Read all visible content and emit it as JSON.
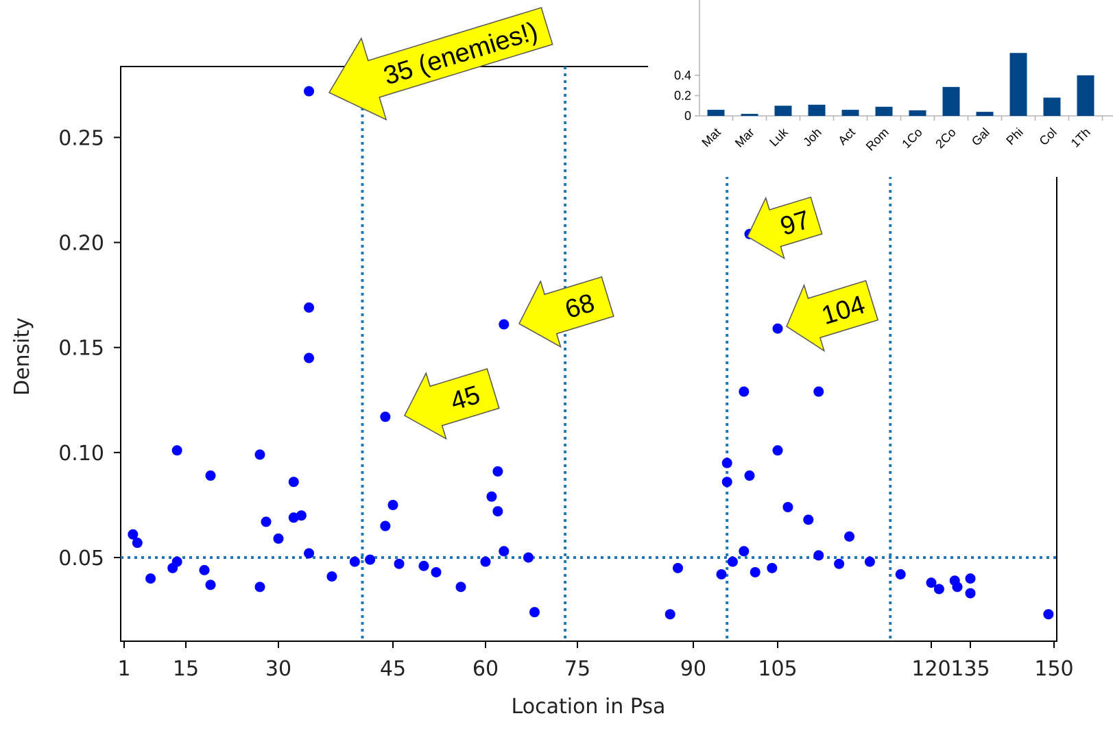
{
  "chart_data": [
    {
      "type": "scatter",
      "xlabel": "Location in Psa",
      "ylabel": "Density",
      "xlim": [
        0,
        150
      ],
      "ylim": [
        0.01,
        0.285
      ],
      "x_ticks": [
        {
          "value": 1,
          "label": "1"
        },
        {
          "value": 15,
          "label": "15"
        },
        {
          "value": 30,
          "label": "30"
        },
        {
          "value": 45,
          "label": "45"
        },
        {
          "value": 60,
          "label": "60"
        },
        {
          "value": 75,
          "label": "75"
        },
        {
          "value": 90,
          "label": "90"
        },
        {
          "value": 105,
          "label": "105"
        },
        {
          "value": 120,
          "label": "120"
        },
        {
          "value": 135,
          "label": "135"
        },
        {
          "value": 150,
          "label": "150"
        }
      ],
      "y_ticks": [
        {
          "value": 0.05,
          "label": "0.05"
        },
        {
          "value": 0.1,
          "label": "0.10"
        },
        {
          "value": 0.15,
          "label": "0.15"
        },
        {
          "value": 0.2,
          "label": "0.20"
        },
        {
          "value": 0.25,
          "label": "0.25"
        }
      ],
      "reference_lines": {
        "horizontal": [
          0.05
        ],
        "vertical": [
          41,
          73,
          96,
          116
        ]
      },
      "point_color": "#0000ff",
      "ref_line_color": "#1f77b4",
      "points": [
        [
          3,
          0.061
        ],
        [
          4,
          0.057
        ],
        [
          7,
          0.04
        ],
        [
          12,
          0.045
        ],
        [
          13,
          0.048
        ],
        [
          13,
          0.101
        ],
        [
          18,
          0.044
        ],
        [
          19,
          0.089
        ],
        [
          19,
          0.037
        ],
        [
          27,
          0.036
        ],
        [
          27,
          0.099
        ],
        [
          28,
          0.067
        ],
        [
          30,
          0.059
        ],
        [
          32,
          0.086
        ],
        [
          32,
          0.069
        ],
        [
          33,
          0.07
        ],
        [
          34,
          0.272
        ],
        [
          34,
          0.169
        ],
        [
          34,
          0.145
        ],
        [
          34,
          0.052
        ],
        [
          37,
          0.041
        ],
        [
          40,
          0.048
        ],
        [
          42,
          0.049
        ],
        [
          44,
          0.065
        ],
        [
          44,
          0.117
        ],
        [
          45,
          0.075
        ],
        [
          46,
          0.047
        ],
        [
          50,
          0.046
        ],
        [
          52,
          0.043
        ],
        [
          56,
          0.036
        ],
        [
          60,
          0.048
        ],
        [
          61,
          0.079
        ],
        [
          62,
          0.072
        ],
        [
          62,
          0.091
        ],
        [
          63,
          0.053
        ],
        [
          63,
          0.161
        ],
        [
          67,
          0.05
        ],
        [
          68,
          0.024
        ],
        [
          87,
          0.023
        ],
        [
          88,
          0.045
        ],
        [
          95,
          0.042
        ],
        [
          96,
          0.086
        ],
        [
          96,
          0.095
        ],
        [
          97,
          0.048
        ],
        [
          99,
          0.053
        ],
        [
          99,
          0.129
        ],
        [
          100,
          0.089
        ],
        [
          100,
          0.204
        ],
        [
          101,
          0.043
        ],
        [
          104,
          0.045
        ],
        [
          105,
          0.101
        ],
        [
          105,
          0.159
        ],
        [
          106,
          0.074
        ],
        [
          108,
          0.068
        ],
        [
          109,
          0.051
        ],
        [
          109,
          0.129
        ],
        [
          111,
          0.047
        ],
        [
          112,
          0.06
        ],
        [
          114,
          0.048
        ],
        [
          117,
          0.042
        ],
        [
          120,
          0.038
        ],
        [
          123,
          0.035
        ],
        [
          129,
          0.039
        ],
        [
          130,
          0.036
        ],
        [
          135,
          0.04
        ],
        [
          135,
          0.033
        ],
        [
          149,
          0.023
        ]
      ],
      "annotations": [
        {
          "label": "35 (enemies!)"
        },
        {
          "label": "45"
        },
        {
          "label": "68"
        },
        {
          "label": "97"
        },
        {
          "label": "104"
        }
      ]
    },
    {
      "type": "bar",
      "categories": [
        "Mat",
        "Mar",
        "Luk",
        "Joh",
        "Act",
        "Rom",
        "1Co",
        "2Co",
        "Gal",
        "Phi",
        "Col",
        "1Th"
      ],
      "values": [
        0.06,
        0.02,
        0.1,
        0.11,
        0.06,
        0.09,
        0.055,
        0.285,
        0.04,
        0.62,
        0.18,
        0.4
      ],
      "ylim": [
        0,
        0.6
      ],
      "y_ticks": [
        {
          "value": 0,
          "label": "0"
        },
        {
          "value": 0.2,
          "label": "0.2"
        },
        {
          "value": 0.4,
          "label": "0.4"
        }
      ],
      "bar_color": "#004586"
    }
  ]
}
